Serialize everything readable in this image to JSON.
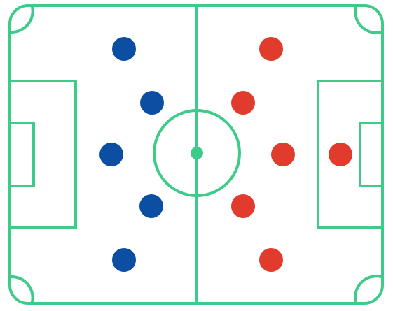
{
  "colors": {
    "background": "#ffffff",
    "line": "#3ecb8a",
    "center_spot": "#3ecb8a",
    "team_left": "#0b4ea2",
    "team_right": "#e03b2c"
  },
  "teams": [
    {
      "id": "left",
      "color_key": "team_left",
      "player_count": 5
    },
    {
      "id": "right",
      "color_key": "team_right",
      "player_count": 6
    }
  ]
}
